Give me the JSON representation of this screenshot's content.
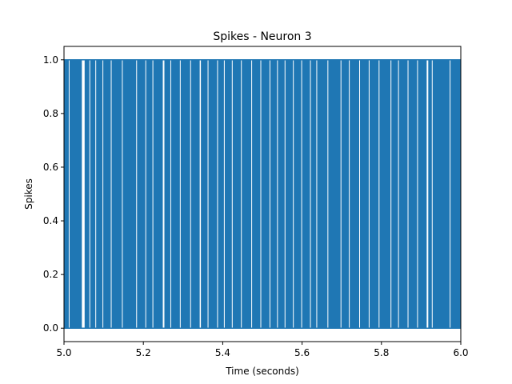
{
  "chart_data": {
    "type": "line",
    "title": "Spikes - Neuron 3",
    "xlabel": "Time (seconds)",
    "ylabel": "Spikes",
    "xlim": [
      5.0,
      6.0
    ],
    "ylim": [
      -0.05,
      1.05
    ],
    "xticks": [
      5.0,
      5.2,
      5.4,
      5.6,
      5.8,
      6.0
    ],
    "xtick_labels": [
      "5.0",
      "5.2",
      "5.4",
      "5.6",
      "5.8",
      "6.0"
    ],
    "yticks": [
      0.0,
      0.2,
      0.4,
      0.6,
      0.8,
      1.0
    ],
    "ytick_labels": [
      "0.0",
      "0.2",
      "0.4",
      "0.6",
      "0.8",
      "1.0"
    ],
    "grid": false,
    "series": [
      {
        "color": "#1f77b4",
        "x_start": 5.0,
        "x_end": 6.0,
        "baseline": 0,
        "peak": 1,
        "gaps": [
          [
            5.012,
            5.014
          ],
          [
            5.045,
            5.052
          ],
          [
            5.064,
            5.066
          ],
          [
            5.079,
            5.081
          ],
          [
            5.097,
            5.099
          ],
          [
            5.118,
            5.12
          ],
          [
            5.146,
            5.148
          ],
          [
            5.182,
            5.184
          ],
          [
            5.205,
            5.207
          ],
          [
            5.223,
            5.225
          ],
          [
            5.249,
            5.253
          ],
          [
            5.268,
            5.27
          ],
          [
            5.292,
            5.294
          ],
          [
            5.318,
            5.32
          ],
          [
            5.342,
            5.345
          ],
          [
            5.362,
            5.364
          ],
          [
            5.386,
            5.388
          ],
          [
            5.403,
            5.405
          ],
          [
            5.423,
            5.425
          ],
          [
            5.446,
            5.448
          ],
          [
            5.472,
            5.474
          ],
          [
            5.495,
            5.497
          ],
          [
            5.518,
            5.52
          ],
          [
            5.537,
            5.539
          ],
          [
            5.556,
            5.558
          ],
          [
            5.577,
            5.579
          ],
          [
            5.598,
            5.6
          ],
          [
            5.62,
            5.622
          ],
          [
            5.636,
            5.638
          ],
          [
            5.664,
            5.666
          ],
          [
            5.697,
            5.699
          ],
          [
            5.718,
            5.72
          ],
          [
            5.744,
            5.746
          ],
          [
            5.768,
            5.77
          ],
          [
            5.793,
            5.795
          ],
          [
            5.823,
            5.825
          ],
          [
            5.842,
            5.844
          ],
          [
            5.866,
            5.868
          ],
          [
            5.89,
            5.892
          ],
          [
            5.914,
            5.918
          ],
          [
            5.927,
            5.929
          ],
          [
            5.972,
            5.974
          ]
        ]
      }
    ]
  }
}
